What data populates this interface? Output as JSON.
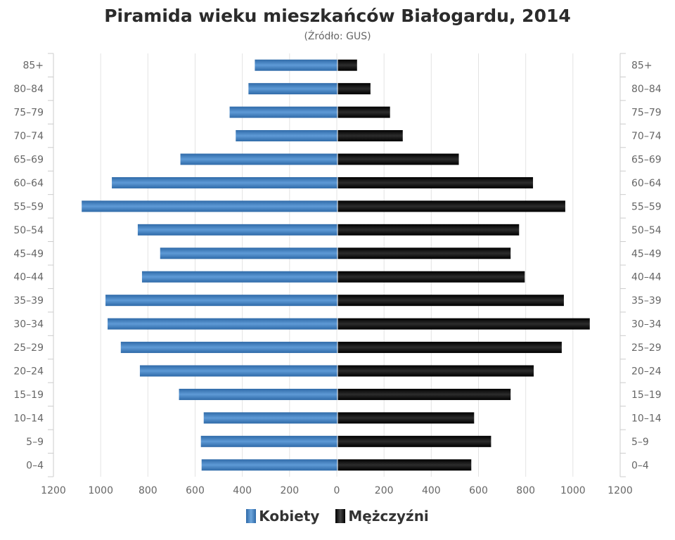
{
  "chart_data": {
    "type": "bar",
    "orientation": "horizontal-population-pyramid",
    "title": "Piramida wieku mieszkańców Białogardu, 2014",
    "subtitle": "(Źródło: GUS)",
    "categories": [
      "85+",
      "80–84",
      "75–79",
      "70–74",
      "65–69",
      "60–64",
      "55–59",
      "50–54",
      "45–49",
      "40–44",
      "35–39",
      "30–34",
      "25–29",
      "20–24",
      "15–19",
      "10–14",
      "5–9",
      "0–4"
    ],
    "series": [
      {
        "name": "Kobiety",
        "color": "#4a86c5",
        "values": [
          351,
          378,
          458,
          432,
          667,
          958,
          1086,
          848,
          753,
          830,
          985,
          976,
          920,
          839,
          673,
          568,
          580,
          577
        ]
      },
      {
        "name": "Mężczyźni",
        "color": "#1a1a1a",
        "values": [
          83,
          140,
          223,
          277,
          515,
          830,
          967,
          771,
          735,
          795,
          961,
          1071,
          952,
          833,
          735,
          580,
          652,
          568
        ]
      }
    ],
    "xlim": [
      -1200,
      1200
    ],
    "xticks": [
      "1200",
      "1000",
      "800",
      "600",
      "400",
      "200",
      "0",
      "200",
      "400",
      "600",
      "800",
      "1000",
      "1200"
    ],
    "grid": true,
    "legend": "bottom"
  }
}
